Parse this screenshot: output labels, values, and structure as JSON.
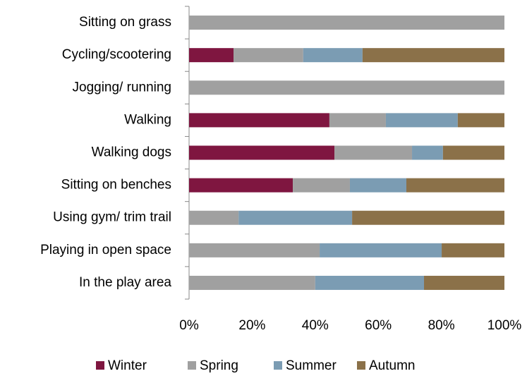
{
  "chart_data": {
    "type": "stacked-bar-horizontal",
    "categories": [
      "Sitting on grass",
      "Cycling/scootering",
      "Jogging/ running",
      "Walking",
      "Walking dogs",
      "Sitting on benches ",
      "Using gym/ trim trail",
      "Playing in open space",
      "In the play area"
    ],
    "series": [
      {
        "name": "Winter",
        "color": "#7f1640",
        "values": [
          null,
          14.1,
          null,
          44.5,
          46.1,
          32.9,
          null,
          null,
          null
        ]
      },
      {
        "name": "Spring",
        "color": "#a0a0a0",
        "values": [
          100,
          22.1,
          100,
          17.9,
          24.6,
          18.1,
          15.7,
          41.4,
          40.0
        ]
      },
      {
        "name": "Summer",
        "color": "#7b9cb3",
        "values": [
          null,
          18.8,
          null,
          22.8,
          9.8,
          17.9,
          36.0,
          38.7,
          34.5
        ]
      },
      {
        "name": "Autumn",
        "color": "#8b7149",
        "values": [
          null,
          45.0,
          null,
          14.8,
          19.5,
          31.1,
          48.3,
          19.9,
          25.5
        ]
      }
    ],
    "xlim": [
      0,
      100
    ],
    "xticks": [
      {
        "value": 0,
        "label": "0%"
      },
      {
        "value": 20,
        "label": "20%"
      },
      {
        "value": 40,
        "label": "40%"
      },
      {
        "value": 60,
        "label": "60%"
      },
      {
        "value": 80,
        "label": "80%"
      },
      {
        "value": 100,
        "label": "100%"
      }
    ],
    "legend": "bottom"
  }
}
